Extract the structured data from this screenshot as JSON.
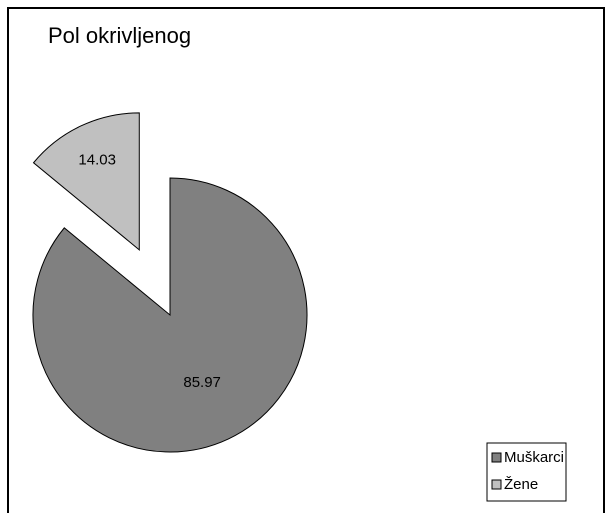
{
  "chart_data": {
    "type": "pie",
    "title": "Pol okrivljenog",
    "categories": [
      "Muškarci",
      "Žene"
    ],
    "values": [
      85.97,
      14.03
    ],
    "colors": [
      "#808080",
      "#c0c0c0"
    ],
    "exploded": [
      false,
      true
    ],
    "legend": "bottom-right"
  }
}
